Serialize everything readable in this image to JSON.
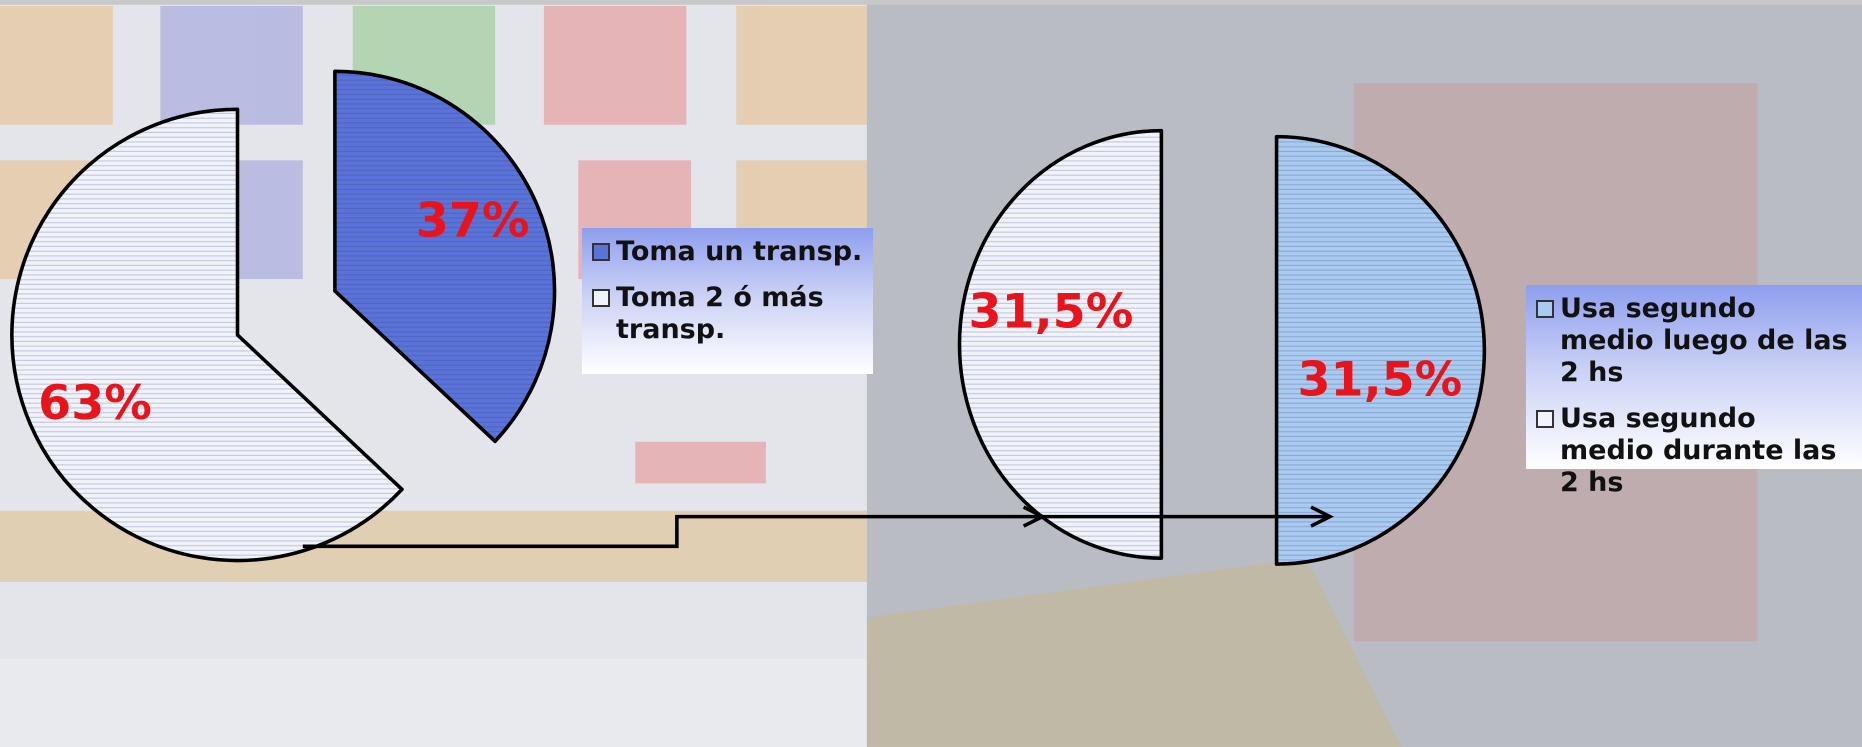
{
  "chart_data": [
    {
      "type": "pie",
      "categories": [
        "Toma un transp.",
        "Toma 2 ó más transp."
      ],
      "values": [
        37,
        63
      ],
      "value_labels": [
        "37%",
        "63%"
      ],
      "colors": [
        "#5a73d8",
        "#f1f3fb"
      ]
    },
    {
      "type": "pie",
      "categories": [
        "Usa segundo medio luego de las 2 hs",
        "Usa segundo medio durante las 2 hs"
      ],
      "values": [
        31.5,
        31.5
      ],
      "value_labels": [
        "31,5%",
        "31,5%"
      ],
      "colors": [
        "#a9cbf0",
        "#f1f3fb"
      ]
    }
  ]
}
